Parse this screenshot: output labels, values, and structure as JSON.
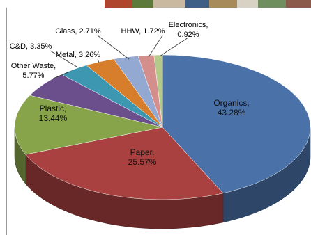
{
  "chart_data": {
    "type": "pie",
    "style": "3d-exploded-none",
    "title": "",
    "legend": "none",
    "slices": [
      {
        "name": "Organics",
        "value": 43.28,
        "label": "Organics,\n43.28%",
        "color": "#4a71a8"
      },
      {
        "name": "Paper",
        "value": 25.57,
        "label": "Paper,\n25.57%",
        "color": "#a8413f"
      },
      {
        "name": "Plastic",
        "value": 13.44,
        "label": "Plastic,\n13.44%",
        "color": "#88a44a"
      },
      {
        "name": "Other Waste",
        "value": 5.77,
        "label": "Other Waste,\n5.77%",
        "color": "#6b4f8c"
      },
      {
        "name": "C&D",
        "value": 3.35,
        "label": "C&D, 3.35%",
        "color": "#3d97b0"
      },
      {
        "name": "Metal",
        "value": 3.26,
        "label": "Metal, 3.26%",
        "color": "#d77e2d"
      },
      {
        "name": "Glass",
        "value": 2.71,
        "label": "Glass, 2.71%",
        "color": "#93a9d1"
      },
      {
        "name": "HHW",
        "value": 1.72,
        "label": "HHW, 1.72%",
        "color": "#d48f8c"
      },
      {
        "name": "Electronics",
        "value": 0.92,
        "label": "Electronics,\n0.92%",
        "color": "#b5ca8a"
      }
    ]
  }
}
